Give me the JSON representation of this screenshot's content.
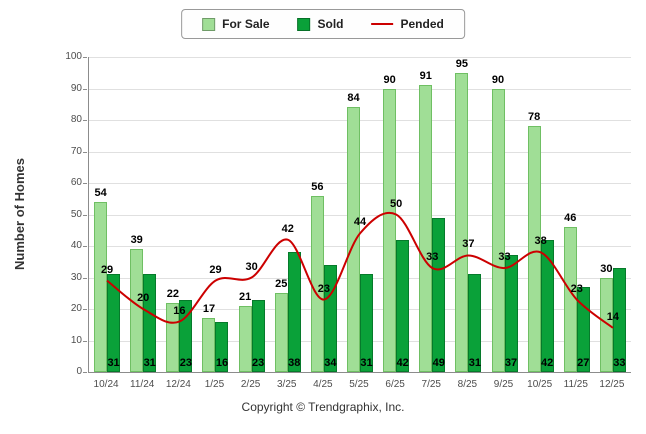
{
  "legend": {
    "items": [
      {
        "label": "For Sale",
        "type": "box",
        "color": "#a0de96"
      },
      {
        "label": "Sold",
        "type": "box",
        "color": "#0aa139"
      },
      {
        "label": "Pended",
        "type": "line",
        "color": "#cc0000"
      }
    ]
  },
  "footer": "Copyright © Trendgraphix, Inc.",
  "chart_data": {
    "type": "bar",
    "title": "",
    "ylabel": "Number of Homes",
    "xlabel": "",
    "ylim": [
      0,
      100
    ],
    "ytick_step": 10,
    "grid": true,
    "legend_position": "top",
    "categories": [
      "10/24",
      "11/24",
      "12/24",
      "1/25",
      "2/25",
      "3/25",
      "4/25",
      "5/25",
      "6/25",
      "7/25",
      "8/25",
      "9/25",
      "10/25",
      "11/25",
      "12/25"
    ],
    "series": [
      {
        "name": "For Sale",
        "type": "bar",
        "color": "#a0de96",
        "border": "#6fbf63",
        "values": [
          54,
          39,
          22,
          17,
          21,
          25,
          56,
          84,
          90,
          91,
          95,
          90,
          78,
          46,
          30
        ]
      },
      {
        "name": "Sold",
        "type": "bar",
        "color": "#0aa139",
        "border": "#067a2b",
        "values": [
          31,
          31,
          23,
          16,
          23,
          38,
          34,
          31,
          42,
          49,
          31,
          37,
          42,
          27,
          33
        ]
      },
      {
        "name": "Pended",
        "type": "line",
        "color": "#cc0000",
        "values": [
          29,
          20,
          16,
          29,
          30,
          42,
          23,
          44,
          50,
          33,
          37,
          33,
          38,
          23,
          14
        ]
      }
    ]
  }
}
